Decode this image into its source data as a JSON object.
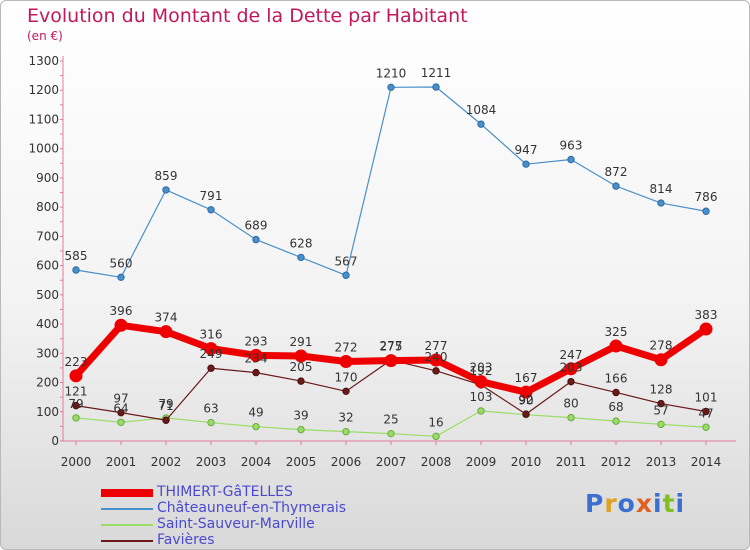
{
  "header": {
    "title": "Evolution du Montant de la Dette par Habitant",
    "unit": "(en €)"
  },
  "logo": {
    "letters": [
      "P",
      "r",
      "o",
      "x",
      "i",
      "t",
      "i"
    ],
    "colors": [
      "#3b6fd0",
      "#e0a020",
      "#3b6fd0",
      "#e06020",
      "#3b6fd0",
      "#80c020",
      "#3b6fd0"
    ]
  },
  "chart_data": {
    "type": "line",
    "title": "Evolution du Montant de la Dette par Habitant",
    "ylabel": "(en €)",
    "xlabel": "",
    "x": [
      "2000",
      "2001",
      "2002",
      "2003",
      "2004",
      "2005",
      "2006",
      "2007",
      "2008",
      "2009",
      "2010",
      "2011",
      "2012",
      "2013",
      "2014"
    ],
    "ylim": [
      0,
      1300
    ],
    "yticks": [
      0,
      100,
      200,
      300,
      400,
      500,
      600,
      700,
      800,
      900,
      1000,
      1100,
      1200,
      1300
    ],
    "grid": false,
    "legend_position": "bottom-left",
    "series": [
      {
        "name": "THIMERT-GâTELLES",
        "color": "#ee0000",
        "values": [
          223,
          396,
          374,
          316,
          293,
          291,
          272,
          275,
          277,
          203,
          167,
          247,
          325,
          278,
          383
        ]
      },
      {
        "name": "Châteauneuf-en-Thymerais",
        "color": "#4a90c8",
        "values": [
          585,
          560,
          859,
          791,
          689,
          628,
          567,
          1210,
          1211,
          1084,
          947,
          963,
          872,
          814,
          786
        ]
      },
      {
        "name": "Saint-Sauveur-Marville",
        "color": "#99dd66",
        "values": [
          79,
          64,
          79,
          63,
          49,
          39,
          32,
          25,
          16,
          103,
          90,
          80,
          68,
          57,
          47
        ]
      },
      {
        "name": "Favières",
        "color": "#6b1a1a",
        "values": [
          121,
          97,
          71,
          249,
          234,
          205,
          170,
          277,
          240,
          192,
          92,
          203,
          166,
          128,
          101
        ]
      }
    ]
  }
}
